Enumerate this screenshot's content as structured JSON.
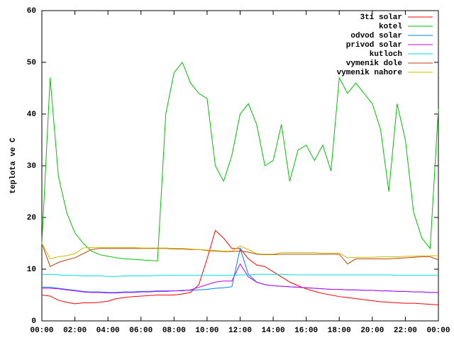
{
  "chart_data": {
    "type": "line",
    "y_label": "teplota ve C",
    "x": [
      0,
      0.5,
      1,
      1.5,
      2,
      2.5,
      3,
      3.5,
      4,
      4.5,
      5,
      5.5,
      6,
      6.5,
      7,
      7.5,
      8,
      8.5,
      9,
      9.5,
      10,
      10.5,
      11,
      11.5,
      12,
      12.5,
      13,
      13.5,
      14,
      14.5,
      15,
      15.5,
      16,
      16.5,
      17,
      17.5,
      18,
      18.5,
      19,
      19.5,
      20,
      20.5,
      21,
      21.5,
      22,
      22.5,
      23,
      23.5,
      24
    ],
    "xlim": [
      0,
      24
    ],
    "xticks": [
      {
        "value": 0,
        "label": "00:00"
      },
      {
        "value": 2,
        "label": "02:00"
      },
      {
        "value": 4,
        "label": "04:00"
      },
      {
        "value": 6,
        "label": "06:00"
      },
      {
        "value": 8,
        "label": "08:00"
      },
      {
        "value": 10,
        "label": "10:00"
      },
      {
        "value": 12,
        "label": "12:00"
      },
      {
        "value": 14,
        "label": "14:00"
      },
      {
        "value": 16,
        "label": "16:00"
      },
      {
        "value": 18,
        "label": "18:00"
      },
      {
        "value": 20,
        "label": "20:00"
      },
      {
        "value": 22,
        "label": "22:00"
      },
      {
        "value": 24,
        "label": "00:00"
      }
    ],
    "ylim": [
      0,
      60
    ],
    "yticks": [
      0,
      10,
      20,
      30,
      40,
      50,
      60
    ],
    "legend": "top-right",
    "series": [
      {
        "name": "3ti solar",
        "color": "#ff0000",
        "values": [
          5,
          4.8,
          4,
          3.6,
          3.3,
          3.5,
          3.5,
          3.6,
          3.8,
          4.3,
          4.5,
          4.7,
          4.8,
          4.9,
          5,
          5,
          5,
          5.2,
          5.5,
          7,
          12,
          17.5,
          16,
          14,
          14,
          12,
          10.8,
          10.5,
          9.5,
          8.5,
          7.5,
          6.8,
          6.2,
          5.7,
          5.3,
          5,
          4.7,
          4.5,
          4.3,
          4.1,
          3.9,
          3.7,
          3.6,
          3.5,
          3.4,
          3.4,
          3.3,
          3.2,
          3.1
        ]
      },
      {
        "name": "kotel",
        "color": "#00c000",
        "values": [
          15,
          47,
          28,
          21,
          17,
          15,
          13.5,
          12.8,
          12.5,
          12.2,
          12,
          11.9,
          11.8,
          11.7,
          11.6,
          40,
          48,
          50,
          46,
          44,
          43,
          30,
          27,
          32,
          40,
          42,
          38,
          30,
          31,
          38,
          27,
          33,
          34,
          31,
          34,
          29,
          47,
          44,
          46,
          44,
          42,
          37,
          25,
          42,
          35,
          21,
          16,
          14,
          41
        ]
      },
      {
        "name": "odvod solar",
        "color": "#0080ff",
        "values": [
          6.5,
          6.5,
          6.3,
          6.1,
          5.9,
          5.7,
          5.6,
          5.6,
          5.5,
          5.5,
          5.6,
          5.6,
          5.7,
          5.7,
          5.8,
          5.8,
          5.8,
          5.9,
          5.9,
          6,
          6.1,
          6.3,
          6.4,
          6.6,
          14,
          9,
          7.5,
          7,
          6.8,
          6.7,
          6.6,
          6.5,
          6.4,
          6.3,
          6.2,
          6.1,
          6.1,
          6,
          6,
          5.9,
          5.9,
          5.8,
          5.8,
          5.7,
          5.7,
          5.6,
          5.6,
          5.5,
          5.5
        ]
      },
      {
        "name": "privod solar",
        "color": "#c000ff",
        "values": [
          6.3,
          6.3,
          6.2,
          6,
          5.8,
          5.6,
          5.5,
          5.5,
          5.4,
          5.4,
          5.5,
          5.5,
          5.6,
          5.6,
          5.7,
          5.7,
          5.8,
          5.8,
          6,
          6.5,
          7,
          7.5,
          7.7,
          7.7,
          11,
          8.5,
          7.5,
          7,
          6.8,
          6.7,
          6.6,
          6.5,
          6.4,
          6.3,
          6.2,
          6.1,
          6.1,
          6,
          6,
          5.9,
          5.9,
          5.8,
          5.8,
          5.7,
          5.7,
          5.6,
          5.6,
          5.5,
          5.5
        ]
      },
      {
        "name": "kutloch",
        "color": "#00dddd",
        "values": [
          9,
          9,
          8.9,
          8.8,
          8.8,
          8.7,
          8.7,
          8.7,
          8.6,
          8.6,
          8.7,
          8.7,
          8.7,
          8.7,
          8.8,
          8.8,
          8.8,
          8.8,
          8.8,
          8.8,
          8.8,
          8.8,
          8.8,
          8.8,
          8.9,
          8.9,
          9,
          9,
          9,
          9,
          8.9,
          8.9,
          8.9,
          8.9,
          8.9,
          8.9,
          8.9,
          8.9,
          8.9,
          8.9,
          8.9,
          8.9,
          8.9,
          8.8,
          8.8,
          8.8,
          8.8,
          8.8,
          8.8
        ]
      },
      {
        "name": "vymenik dole",
        "color": "#c04000",
        "values": [
          15,
          10.5,
          11.3,
          11.8,
          12.2,
          13,
          13.8,
          14,
          14,
          14,
          14,
          14,
          14,
          14,
          14,
          14,
          13.9,
          13.9,
          13.8,
          13.8,
          13.6,
          13.5,
          13.4,
          13.4,
          13.5,
          13.3,
          12.9,
          12.8,
          12.8,
          12.9,
          12.9,
          12.9,
          12.9,
          12.9,
          12.9,
          12.9,
          12.9,
          11,
          12,
          12,
          12,
          12,
          12,
          12.1,
          12.2,
          12.3,
          12.4,
          12.4,
          11.8
        ]
      },
      {
        "name": "vymenik nahore",
        "color": "#c8c000",
        "values": [
          15,
          12,
          12.4,
          12.6,
          13,
          14.1,
          14.2,
          14.2,
          14.2,
          14.2,
          14.2,
          14.2,
          14.1,
          14.1,
          14.1,
          14.1,
          14,
          14,
          13.9,
          13.8,
          13.7,
          13.6,
          13.5,
          13.5,
          14.5,
          13.8,
          13,
          12.9,
          12.9,
          13.2,
          13.2,
          13.2,
          13.2,
          13.2,
          13.1,
          13.1,
          13.1,
          12.2,
          12.3,
          12.3,
          12.3,
          12.4,
          12.4,
          12.4,
          12.5,
          12.5,
          12.6,
          12.6,
          12.6
        ]
      }
    ]
  }
}
